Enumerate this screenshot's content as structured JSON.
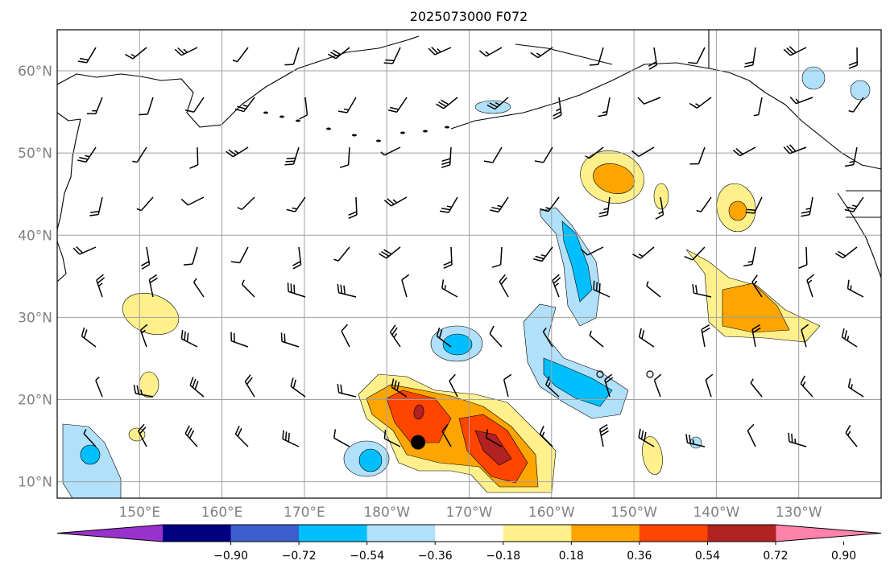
{
  "map": {
    "title": "2025073000 F072",
    "lon_range": [
      140,
      240
    ],
    "lat_range": [
      8,
      65
    ],
    "lon_ticks": [
      {
        "lon": 150,
        "label": "150°E"
      },
      {
        "lon": 160,
        "label": "160°E"
      },
      {
        "lon": 170,
        "label": "170°E"
      },
      {
        "lon": 180,
        "label": "180°W"
      },
      {
        "lon": 190,
        "label": "170°W"
      },
      {
        "lon": 200,
        "label": "160°W"
      },
      {
        "lon": 210,
        "label": "150°W"
      },
      {
        "lon": 220,
        "label": "140°W"
      },
      {
        "lon": 230,
        "label": "130°W"
      }
    ],
    "lat_ticks": [
      {
        "lat": 10,
        "label": "10°N"
      },
      {
        "lat": 20,
        "label": "20°N"
      },
      {
        "lat": 30,
        "label": "30°N"
      },
      {
        "lat": 40,
        "label": "40°N"
      },
      {
        "lat": 50,
        "label": "50°N"
      },
      {
        "lat": 60,
        "label": "60°N"
      }
    ],
    "grid": true,
    "marker": {
      "lon": 183.8,
      "lat": 14.8,
      "color": "#000000"
    },
    "palette": {
      "positive": [
        "#fff08c",
        "#ffa500",
        "#ff4500",
        "#b22222"
      ],
      "negative": [
        "#b0e0fa",
        "#00bfff"
      ]
    }
  },
  "colorbar": {
    "colors": [
      "#9932cc",
      "#000080",
      "#3a5fcd",
      "#00bfff",
      "#b0e0fa",
      "#ffffff",
      "#fff08c",
      "#ffa500",
      "#ff4500",
      "#b22222",
      "#ff82ab"
    ],
    "labels": [
      "−0.90",
      "−0.72",
      "−0.54",
      "−0.36",
      "−0.18",
      "0.18",
      "0.36",
      "0.54",
      "0.72",
      "0.90"
    ]
  }
}
